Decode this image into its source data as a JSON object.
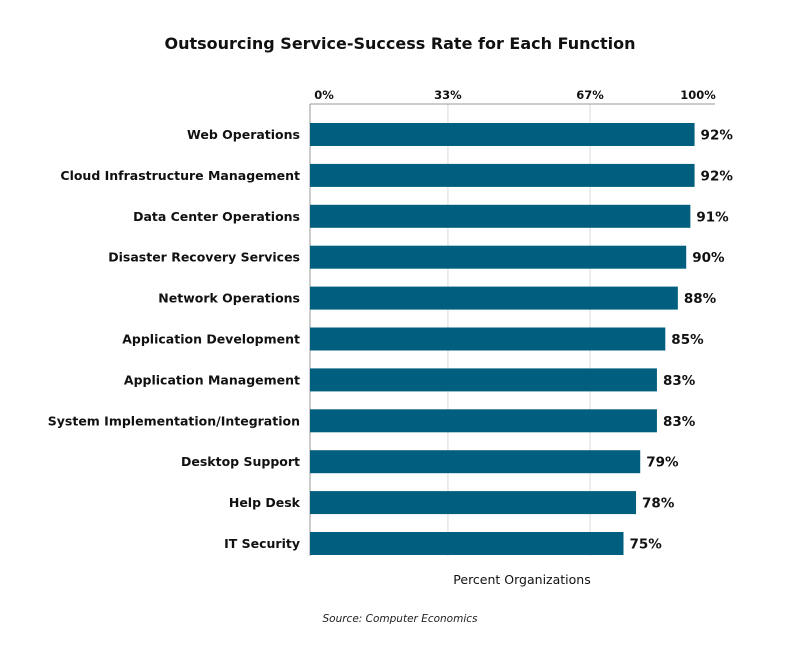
{
  "chart_data": {
    "type": "bar",
    "orientation": "horizontal",
    "title": "Outsourcing Service-Success Rate for Each Function",
    "xlabel": "Percent Organizations",
    "ylabel": "",
    "source": "Source: Computer Economics",
    "xlim": [
      0,
      100
    ],
    "xticks": [
      "0%",
      "33%",
      "67%",
      "100%"
    ],
    "xtick_values": [
      0,
      33,
      67,
      100
    ],
    "grid": true,
    "bar_color": "#005f7f",
    "categories": [
      "Web Operations",
      "Cloud Infrastructure Management",
      "Data Center Operations",
      "Disaster Recovery Services",
      "Network Operations",
      "Application Development",
      "Application Management",
      "System Implementation/Integration",
      "Desktop Support",
      "Help Desk",
      "IT Security"
    ],
    "values": [
      92,
      92,
      91,
      90,
      88,
      85,
      83,
      83,
      79,
      78,
      75
    ],
    "value_labels": [
      "92%",
      "92%",
      "91%",
      "90%",
      "88%",
      "85%",
      "83%",
      "83%",
      "79%",
      "78%",
      "75%"
    ]
  }
}
